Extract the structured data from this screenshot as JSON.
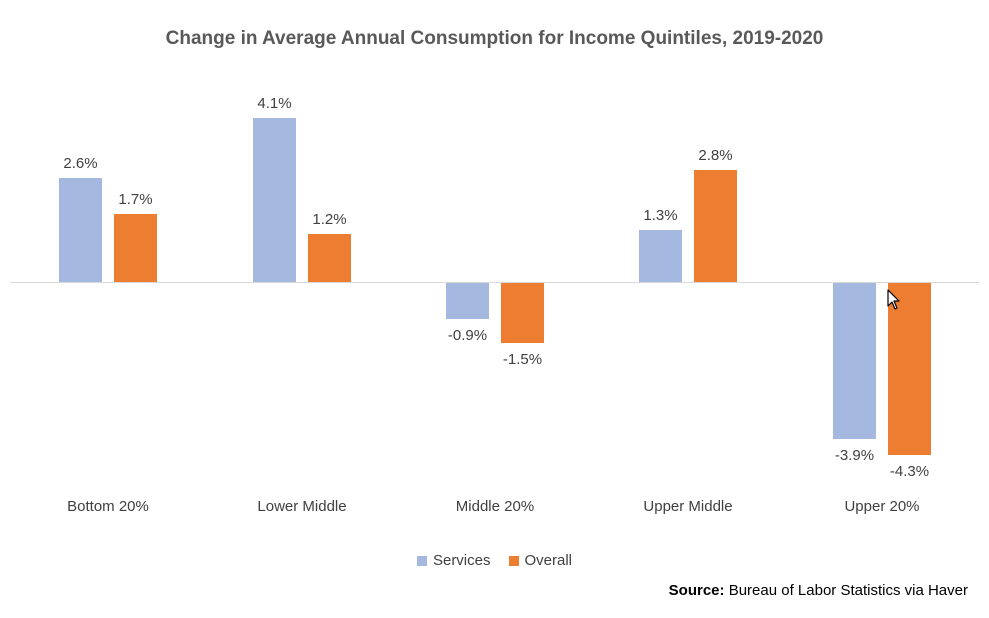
{
  "chart_data": {
    "type": "bar",
    "title": "Change in Average Annual Consumption for Income Quintiles, 2019-2020",
    "categories": [
      "Bottom 20%",
      "Lower Middle",
      "Middle 20%",
      "Upper Middle",
      "Upper 20%"
    ],
    "series": [
      {
        "name": "Services",
        "color": "#a5b8e0",
        "values": [
          2.6,
          4.1,
          -0.9,
          1.3,
          -3.9
        ],
        "labels": [
          "2.6%",
          "4.1%",
          "-0.9%",
          "1.3%",
          "-3.9%"
        ]
      },
      {
        "name": "Overall",
        "color": "#ed7d31",
        "values": [
          1.7,
          1.2,
          -1.5,
          2.8,
          -4.3
        ],
        "labels": [
          "1.7%",
          "1.2%",
          "-1.5%",
          "2.8%",
          "-4.3%"
        ]
      }
    ],
    "xlabel": "",
    "ylabel": "",
    "ylim": [
      -5,
      5
    ],
    "grid": false,
    "legend_position": "bottom",
    "value_format": "percent"
  },
  "source": {
    "label": "Source:",
    "text": "Bureau of Labor Statistics via Haver"
  },
  "colors": {
    "axis": "#d9d9d9",
    "text": "#404040",
    "title": "#595959"
  }
}
